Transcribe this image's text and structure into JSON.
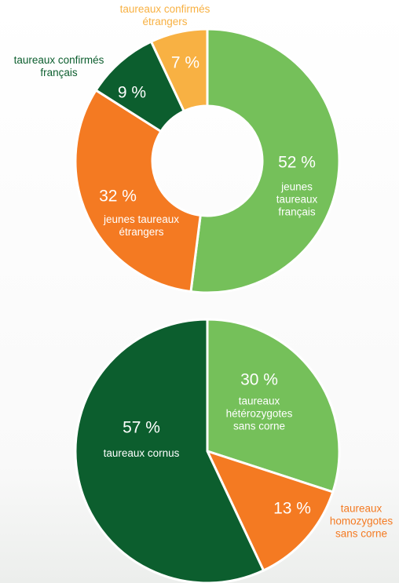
{
  "chart_data": [
    {
      "type": "donut",
      "categories": [
        "jeunes taureaux français",
        "jeunes taureaux étrangers",
        "taureaux confirmés français",
        "taureaux confirmés étrangers"
      ],
      "values": [
        52,
        32,
        9,
        7
      ],
      "value_labels": [
        "52 %",
        "32 %",
        "9 %",
        "7 %"
      ],
      "colors": [
        "#75c05a",
        "#f47a22",
        "#0c5e2e",
        "#f8b143"
      ]
    },
    {
      "type": "pie",
      "categories": [
        "taureaux hétérozygotes sans corne",
        "taureaux homozygotes sans corne",
        "taureaux cornus"
      ],
      "values": [
        30,
        13,
        57
      ],
      "value_labels": [
        "30 %",
        "13 %",
        "57 %"
      ],
      "colors": [
        "#75c05a",
        "#f47a22",
        "#0c5e2e"
      ]
    }
  ]
}
